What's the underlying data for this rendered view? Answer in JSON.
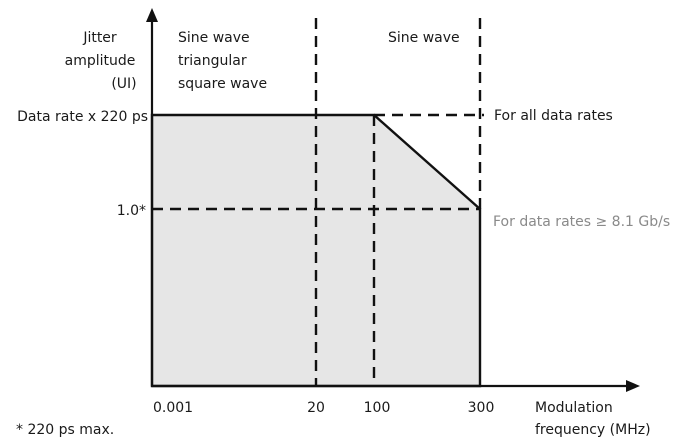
{
  "chart_data": {
    "type": "area",
    "y_axis_label": [
      "Jitter",
      "amplitude",
      "(UI)"
    ],
    "x_axis_label": [
      "Modulation",
      "frequency (MHz)"
    ],
    "x_ticks": [
      "0.001",
      "20",
      "100",
      "300"
    ],
    "y_ticks": [
      "Data rate x 220 ps",
      "1.0*"
    ],
    "region_labels": {
      "low": [
        "Sine wave",
        "triangular",
        "square wave"
      ],
      "high": [
        "Sine wave"
      ]
    },
    "annotations": {
      "upper_curve": "For all data rates",
      "lower_curve": "For data rates ≥ 8.1 Gb/s"
    },
    "footnote": "* 220 ps max.",
    "tolerance_mask": {
      "x": [
        "0.001",
        "100",
        "300"
      ],
      "y": [
        "Data rate x 220 ps",
        "Data rate x 220 ps",
        "1.0*"
      ]
    },
    "colors": {
      "fill": "#e6e6e6",
      "axis": "#111111",
      "muted_text": "#8a8a8a"
    }
  }
}
